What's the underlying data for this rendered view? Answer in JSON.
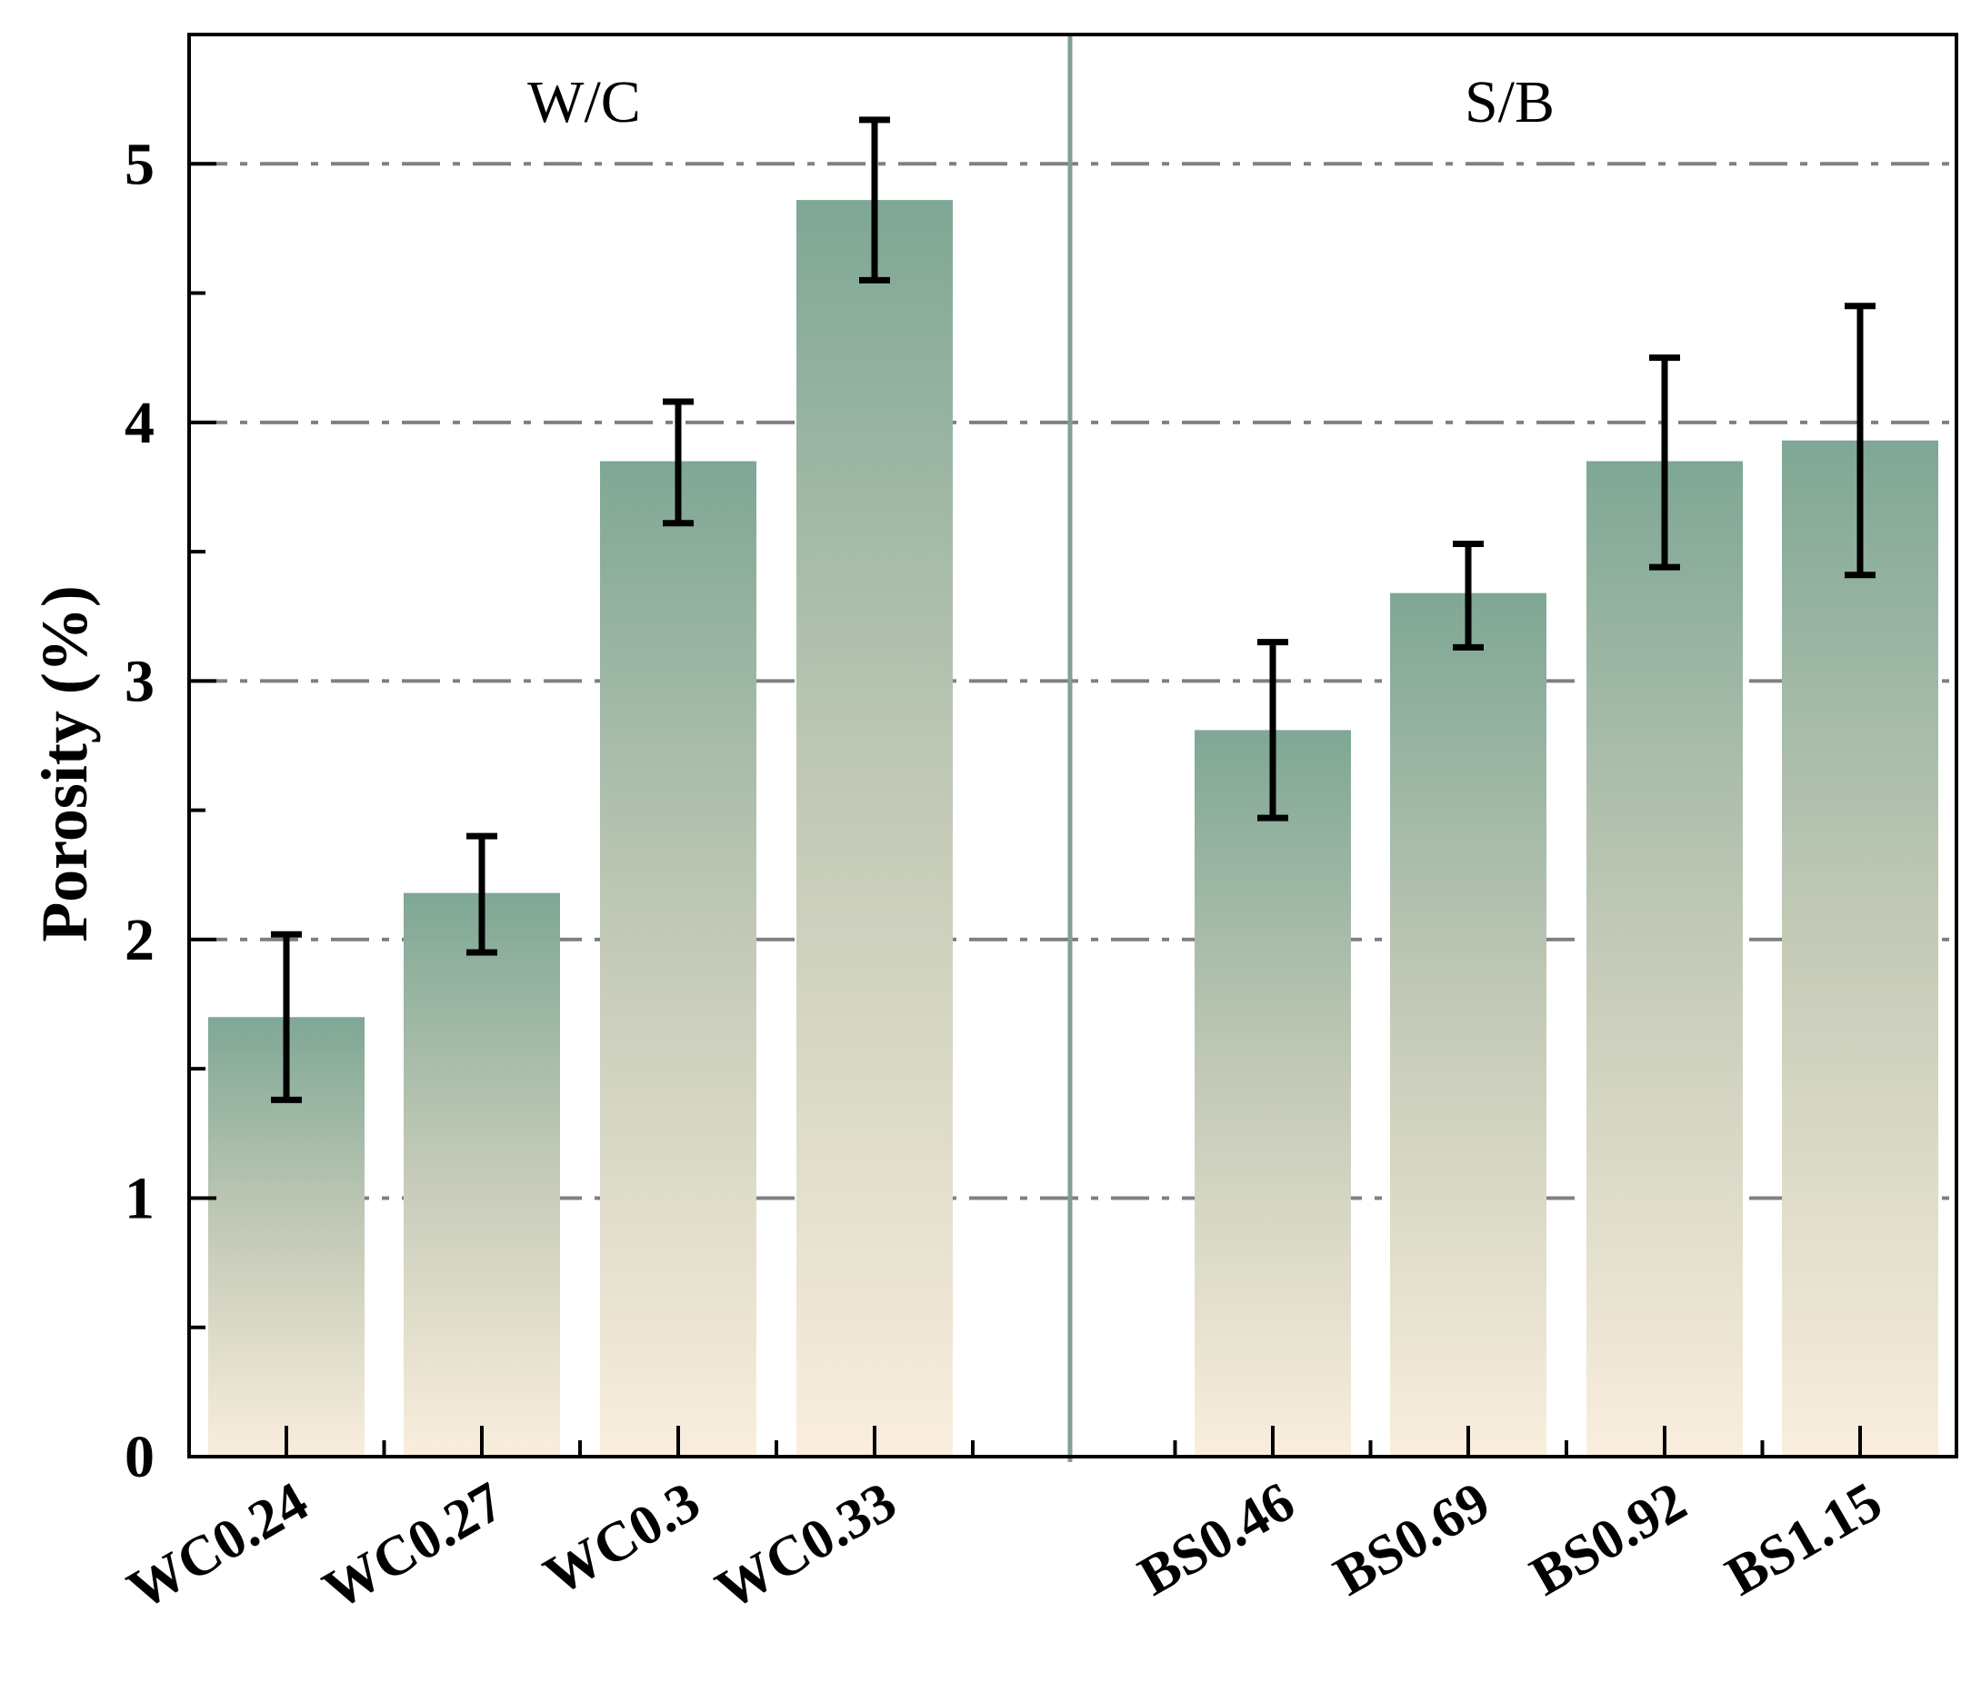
{
  "chart_data": {
    "type": "bar",
    "title": "",
    "xlabel": "",
    "ylabel": "Porosity (%)",
    "ylim": [
      0,
      5.5
    ],
    "yticks": [
      "0",
      "1",
      "2",
      "3",
      "4",
      "5"
    ],
    "grid": "dash-dot horizontal at major ticks",
    "groups": [
      {
        "label": "W/C",
        "categories": [
          "WC0.24",
          "WC0.27",
          "WC0.3",
          "WC0.33"
        ],
        "values": [
          1.7,
          2.18,
          3.85,
          4.86
        ],
        "error_low": [
          1.38,
          1.95,
          3.61,
          4.55
        ],
        "error_high": [
          2.02,
          2.4,
          4.08,
          5.17
        ]
      },
      {
        "label": "S/B",
        "categories": [
          "BS0.46",
          "BS0.69",
          "BS0.92",
          "BS1.15"
        ],
        "values": [
          2.81,
          3.34,
          3.85,
          3.93
        ],
        "error_low": [
          2.47,
          3.13,
          3.44,
          3.41
        ],
        "error_high": [
          3.15,
          3.53,
          4.25,
          4.45
        ]
      }
    ],
    "colors": {
      "bar_top": "#7fa795",
      "bar_mid": "#c5cbb8",
      "bar_bottom": "#faeedd",
      "divider": "#7fa195",
      "grid": "#808080",
      "axis": "#000000"
    }
  }
}
